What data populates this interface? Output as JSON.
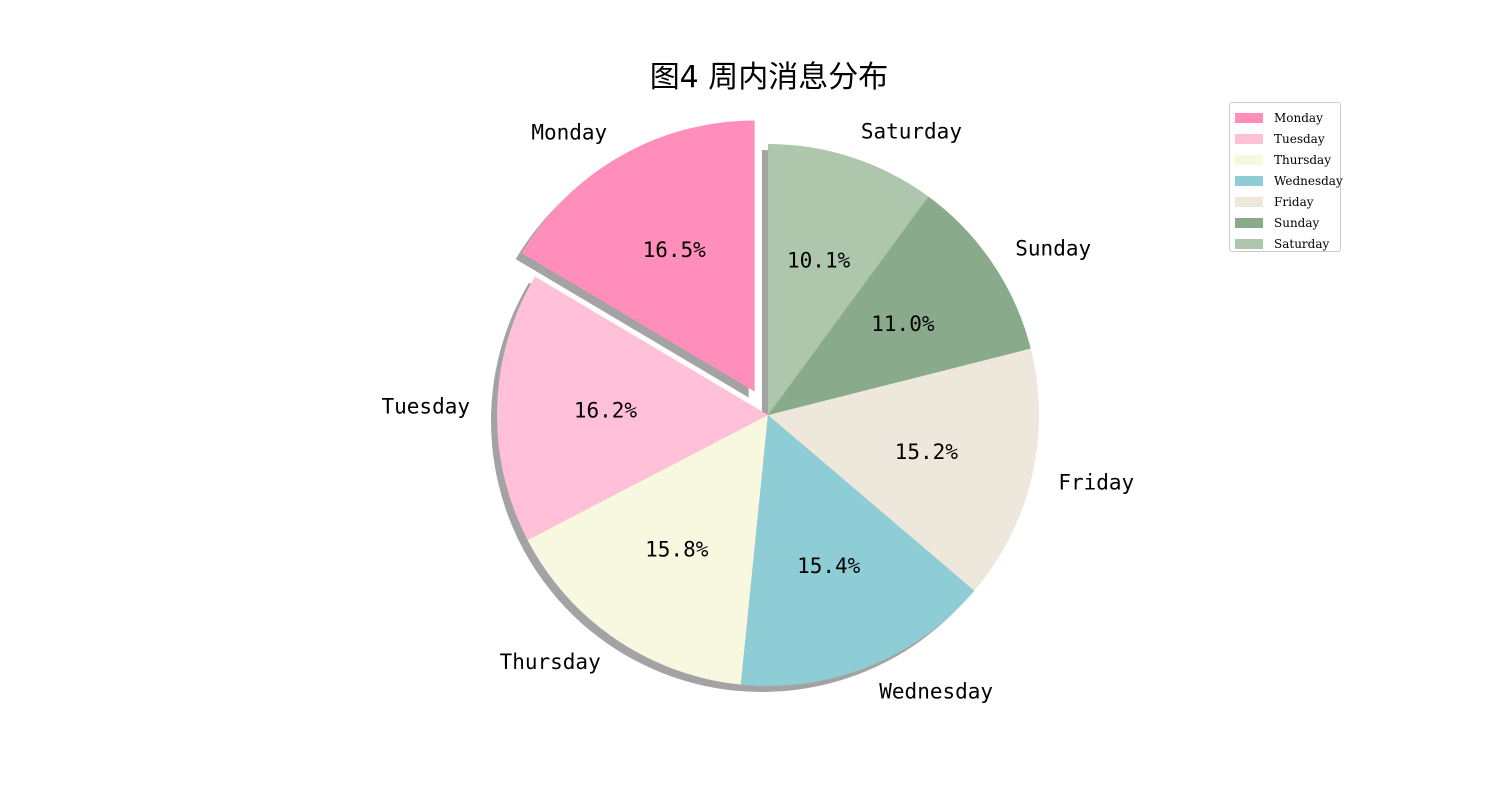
{
  "chart_data": {
    "type": "pie",
    "title": "图4 周内消息分布",
    "slices": [
      {
        "label": "Monday",
        "value": 16.5,
        "pct_label": "16.5%",
        "color": "#ff8fba",
        "exploded": true
      },
      {
        "label": "Tuesday",
        "value": 16.2,
        "pct_label": "16.2%",
        "color": "#ffc0d8"
      },
      {
        "label": "Thursday",
        "value": 15.8,
        "pct_label": "15.8%",
        "color": "#f8f8e0"
      },
      {
        "label": "Wednesday",
        "value": 15.4,
        "pct_label": "15.4%",
        "color": "#8ecdd6"
      },
      {
        "label": "Friday",
        "value": 15.2,
        "pct_label": "15.2%",
        "color": "#eee7db"
      },
      {
        "label": "Sunday",
        "value": 11.0,
        "pct_label": "11.0%",
        "color": "#89ab8c"
      },
      {
        "label": "Saturday",
        "value": 10.1,
        "pct_label": "10.1%",
        "color": "#aec6ac"
      }
    ],
    "legend": {
      "placement": "top-right",
      "entries": [
        "Monday",
        "Tuesday",
        "Thursday",
        "Wednesday",
        "Friday",
        "Sunday",
        "Saturday"
      ]
    },
    "shadow": true,
    "start_angle": "top",
    "direction": "counterclockwise"
  }
}
